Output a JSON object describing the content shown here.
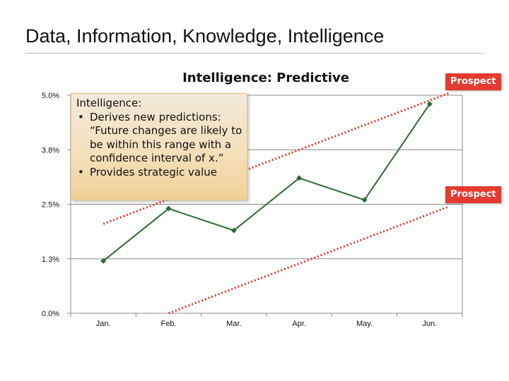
{
  "slide": {
    "title": "Data, Information, Knowledge, Intelligence"
  },
  "callout": {
    "heading": "Intelligence:",
    "bullet_1": "Derives new predictions: “Future changes are likely to be within this range with a confidence interval of x.”",
    "bullet_2": "Provides strategic value"
  },
  "chart_data": {
    "type": "line",
    "title": "Intelligence: Predictive",
    "xlabel": "",
    "ylabel": "",
    "categories": [
      "Jan.",
      "Feb.",
      "Mar.",
      "Apr.",
      "May.",
      "Jun."
    ],
    "series": [
      {
        "values": [
          1.2,
          2.4,
          1.9,
          3.1,
          2.6,
          4.8
        ],
        "color": "#2e6b35"
      }
    ],
    "prospect_bounds": [
      {
        "label": "Prospect",
        "start": [
          0,
          2.05
        ],
        "end": [
          5.3,
          5.05
        ],
        "color": "#e53a2f"
      },
      {
        "label": "Prospect",
        "start": [
          1,
          0.0
        ],
        "end": [
          5.3,
          2.45
        ],
        "color": "#e53a2f"
      }
    ],
    "ylim": [
      0,
      5.0
    ],
    "y_ticks": [
      0.0,
      1.25,
      2.5,
      3.75,
      5.0
    ],
    "y_tick_labels": [
      "0.0%",
      "1.3%",
      "2.5%",
      "3.8%",
      "5.0%"
    ],
    "grid": true
  }
}
